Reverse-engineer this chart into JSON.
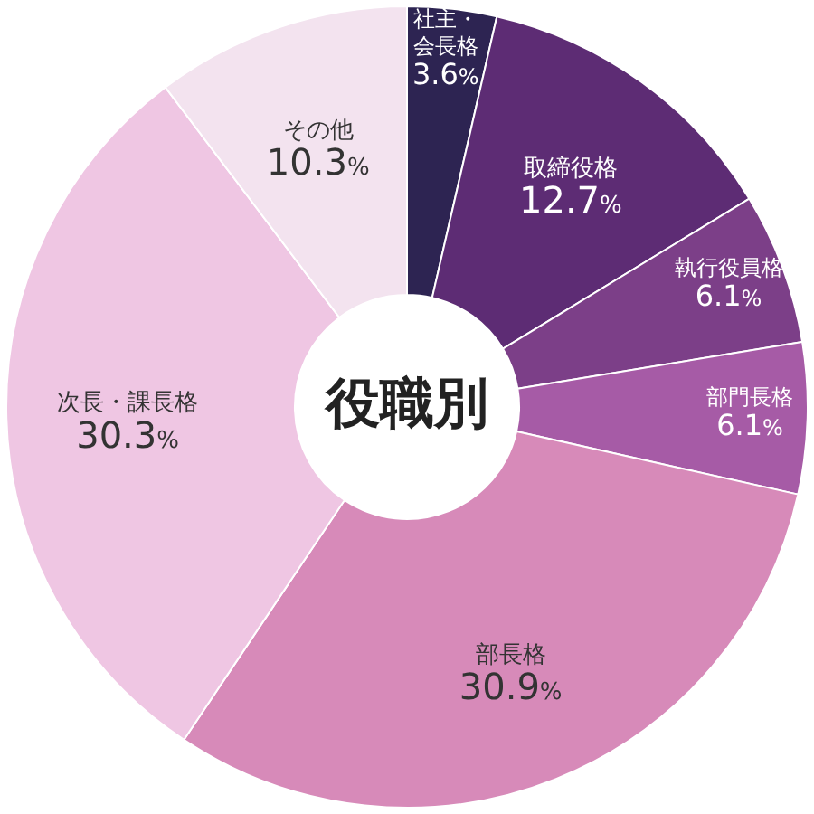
{
  "chart_data": {
    "type": "donut",
    "title": "役職別",
    "categories": [
      "社主・会長格",
      "取締役格",
      "執行役員格",
      "部門長格",
      "部長格",
      "次長・課長格",
      "その他"
    ],
    "values": [
      3.6,
      12.7,
      6.1,
      6.1,
      30.9,
      30.3,
      10.3
    ],
    "value_labels": [
      "3.6%",
      "12.7%",
      "6.1%",
      "6.1%",
      "30.9%",
      "30.3%",
      "10.3%"
    ],
    "colors": [
      "#2d2452",
      "#5d2c74",
      "#7c3f88",
      "#a65ba6",
      "#d78ab9",
      "#efc6e3",
      "#f3e3ef"
    ],
    "legend": false
  }
}
